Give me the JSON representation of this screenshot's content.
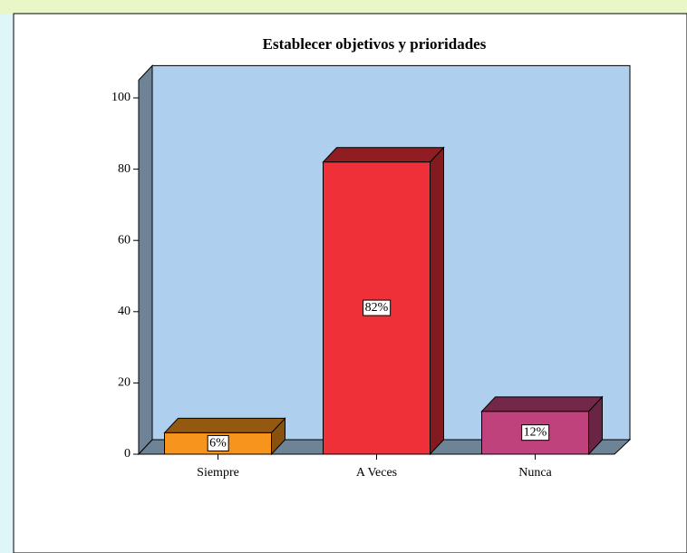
{
  "chart_data": {
    "type": "bar",
    "title": "Establecer objetivos y prioridades",
    "categories": [
      "Siempre",
      "A Veces",
      "Nunca"
    ],
    "values": [
      6,
      82,
      12
    ],
    "value_labels": [
      "6%",
      "82%",
      "12%"
    ],
    "colors": [
      "#f7941d",
      "#ef3038",
      "#c0427c"
    ],
    "ylim": [
      0,
      105
    ],
    "yticks": [
      0,
      20,
      40,
      60,
      80,
      100
    ]
  }
}
